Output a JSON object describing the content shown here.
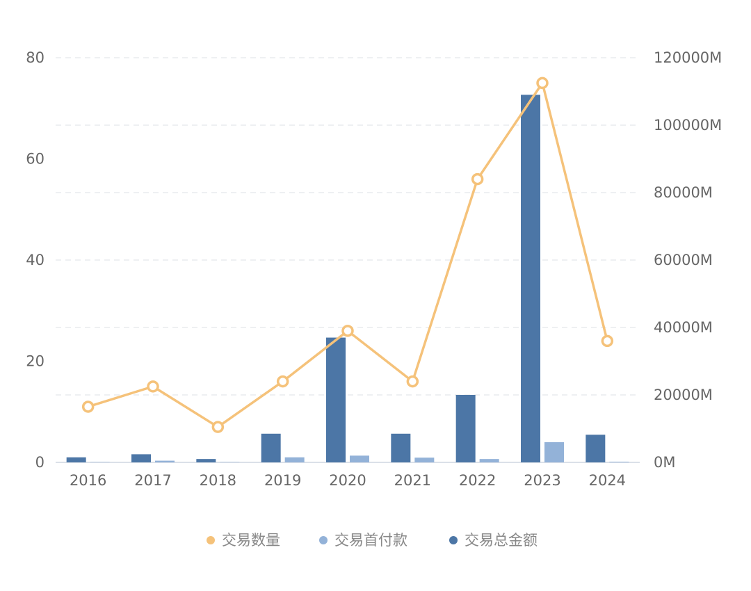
{
  "chart_data": {
    "type": "bar",
    "categories": [
      "2016",
      "2017",
      "2018",
      "2019",
      "2020",
      "2021",
      "2022",
      "2023",
      "2024"
    ],
    "y_left": {
      "ticks": [
        "0",
        "20",
        "40",
        "60",
        "80"
      ],
      "range": [
        0,
        80
      ]
    },
    "y_right": {
      "ticks": [
        "0M",
        "20000M",
        "40000M",
        "60000M",
        "80000M",
        "100000M",
        "120000M"
      ],
      "range": [
        0,
        120000
      ]
    },
    "grid": true,
    "legend_position": "bottom",
    "series": [
      {
        "name": "交易数量",
        "type": "line",
        "axis": "left",
        "color": "#F5C27A",
        "values": [
          11,
          15,
          7,
          16,
          26,
          16,
          56,
          75,
          24
        ]
      },
      {
        "name": "交易首付款",
        "type": "bar",
        "axis": "right",
        "color": "#93B2D8",
        "values": [
          100,
          500,
          100,
          1500,
          2000,
          1400,
          1000,
          6000,
          200
        ]
      },
      {
        "name": "交易总金额",
        "type": "bar",
        "axis": "right",
        "color": "#4C76A6",
        "values": [
          1500,
          2400,
          1000,
          8500,
          37000,
          8500,
          20000,
          109000,
          8200
        ]
      }
    ],
    "legend": [
      {
        "label": "交易数量",
        "color": "#F5C27A"
      },
      {
        "label": "交易首付款",
        "color": "#93B2D8"
      },
      {
        "label": "交易总金额",
        "color": "#4C76A6"
      }
    ]
  }
}
